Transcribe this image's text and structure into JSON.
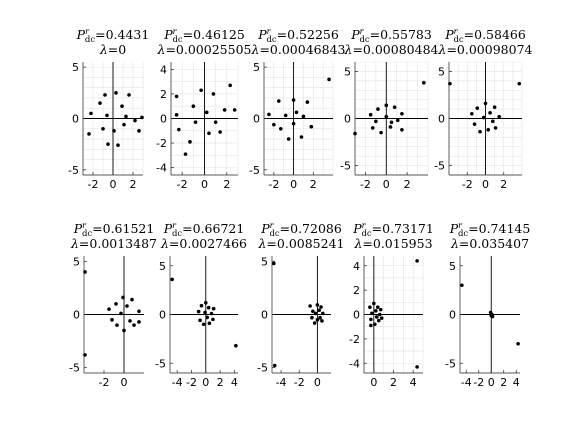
{
  "figure": {
    "background": "#ffffff",
    "point_color": "#000000",
    "grid_color": "#e3e3e3"
  },
  "chart_data": [
    {
      "type": "scatter",
      "title_main": "P",
      "title_sub": "dc",
      "title_sup": "r",
      "p_value": "=0.4431",
      "lambda_value": "=0",
      "xlim": [
        -3,
        3
      ],
      "ylim": [
        -5.5,
        5.5
      ],
      "xticks": [
        -2,
        0,
        2
      ],
      "yticks": [
        -5,
        0,
        5
      ],
      "grid": true,
      "zero_lines": true,
      "points": [
        [
          -2.4,
          -1.5
        ],
        [
          -2.2,
          0.5
        ],
        [
          -1.3,
          1.5
        ],
        [
          -0.8,
          2.3
        ],
        [
          -0.6,
          0.3
        ],
        [
          -1.0,
          -1.0
        ],
        [
          -0.5,
          -2.5
        ],
        [
          0.1,
          -1.2
        ],
        [
          0.3,
          2.5
        ],
        [
          0.5,
          -2.6
        ],
        [
          0.9,
          1.2
        ],
        [
          1.1,
          -0.6
        ],
        [
          1.3,
          0.2
        ],
        [
          1.6,
          2.3
        ],
        [
          2.2,
          -0.2
        ],
        [
          2.6,
          -1.2
        ],
        [
          2.9,
          0.1
        ]
      ]
    },
    {
      "type": "scatter",
      "title_main": "P",
      "title_sub": "dc",
      "title_sup": "r",
      "p_value": "=0.46125",
      "lambda_value": "=0.00025505",
      "xlim": [
        -3,
        3
      ],
      "ylim": [
        -4.6,
        4.6
      ],
      "xticks": [
        -2,
        0,
        2
      ],
      "yticks": [
        -4,
        -2,
        0,
        2,
        4
      ],
      "grid": true,
      "zero_lines": true,
      "points": [
        [
          -2.5,
          1.8
        ],
        [
          -2.5,
          0.3
        ],
        [
          -2.3,
          -0.9
        ],
        [
          -1.7,
          -2.9
        ],
        [
          -1.3,
          -1.9
        ],
        [
          -1.0,
          1.0
        ],
        [
          -0.8,
          -0.3
        ],
        [
          -0.3,
          2.3
        ],
        [
          0.2,
          0.5
        ],
        [
          0.4,
          -1.2
        ],
        [
          0.8,
          2.0
        ],
        [
          1.0,
          -0.3
        ],
        [
          1.4,
          -1.1
        ],
        [
          1.8,
          0.7
        ],
        [
          2.3,
          2.7
        ],
        [
          2.7,
          0.7
        ]
      ]
    },
    {
      "type": "scatter",
      "title_main": "P",
      "title_sub": "dc",
      "title_sup": "r",
      "p_value": "=0.52256",
      "lambda_value": "=0.00046843",
      "xlim": [
        -3,
        4
      ],
      "ylim": [
        -5.5,
        5.5
      ],
      "xticks": [
        -2,
        0,
        2
      ],
      "yticks": [
        -5,
        0,
        5
      ],
      "grid": true,
      "zero_lines": true,
      "points": [
        [
          -2.5,
          0.4
        ],
        [
          -2.0,
          -0.6
        ],
        [
          -1.5,
          1.7
        ],
        [
          -1.3,
          -1.0
        ],
        [
          -0.8,
          0.3
        ],
        [
          -0.5,
          -2.0
        ],
        [
          0.0,
          -0.5
        ],
        [
          0.0,
          1.8
        ],
        [
          0.3,
          0.6
        ],
        [
          0.8,
          -1.8
        ],
        [
          1.0,
          0.2
        ],
        [
          1.4,
          1.6
        ],
        [
          1.8,
          -0.8
        ],
        [
          3.6,
          3.8
        ]
      ]
    },
    {
      "type": "scatter",
      "title_main": "P",
      "title_sub": "dc",
      "title_sup": "r",
      "p_value": "=0.55783",
      "lambda_value": "=0.00080484",
      "xlim": [
        -3,
        4
      ],
      "ylim": [
        -6,
        6
      ],
      "xticks": [
        -2,
        0,
        2
      ],
      "yticks": [
        -5,
        0,
        5
      ],
      "grid": true,
      "zero_lines": true,
      "points": [
        [
          -3.0,
          -1.6
        ],
        [
          -1.5,
          0.4
        ],
        [
          -1.3,
          -1.0
        ],
        [
          -1.0,
          -0.3
        ],
        [
          -0.8,
          1.0
        ],
        [
          -0.5,
          -1.5
        ],
        [
          0.0,
          0.2
        ],
        [
          0.0,
          1.4
        ],
        [
          0.4,
          -0.9
        ],
        [
          0.5,
          -0.4
        ],
        [
          0.8,
          1.2
        ],
        [
          1.1,
          -0.2
        ],
        [
          1.5,
          0.5
        ],
        [
          1.5,
          -1.2
        ],
        [
          3.6,
          3.8
        ]
      ]
    },
    {
      "type": "scatter",
      "title_main": "P",
      "title_sub": "dc",
      "title_sup": "r",
      "p_value": "=0.58466",
      "lambda_value": "=0.00098074",
      "xlim": [
        -4,
        4
      ],
      "ylim": [
        -6,
        6
      ],
      "xticks": [
        -2,
        0,
        2
      ],
      "yticks": [
        -5,
        0,
        5
      ],
      "grid": true,
      "zero_lines": true,
      "points": [
        [
          -3.9,
          3.7
        ],
        [
          -1.5,
          0.5
        ],
        [
          -1.2,
          -0.6
        ],
        [
          -0.9,
          1.1
        ],
        [
          -0.6,
          -1.4
        ],
        [
          -0.2,
          0.1
        ],
        [
          0.0,
          1.6
        ],
        [
          0.3,
          -1.2
        ],
        [
          0.5,
          0.6
        ],
        [
          0.8,
          -0.3
        ],
        [
          1.0,
          1.2
        ],
        [
          1.1,
          -1.0
        ],
        [
          1.5,
          0.2
        ],
        [
          3.7,
          3.7
        ]
      ]
    },
    {
      "type": "scatter",
      "title_main": "P",
      "title_sub": "dc",
      "title_sup": "r",
      "p_value": "=0.61521",
      "lambda_value": "=0.0013487",
      "xlim": [
        -4,
        2
      ],
      "ylim": [
        -5.5,
        5.5
      ],
      "xticks": [
        -2,
        0
      ],
      "yticks": [
        -5,
        0,
        5
      ],
      "grid": false,
      "zero_lines": true,
      "points": [
        [
          -3.9,
          4.0
        ],
        [
          -3.9,
          -3.8
        ],
        [
          -1.5,
          0.5
        ],
        [
          -1.2,
          -0.5
        ],
        [
          -0.8,
          1.0
        ],
        [
          -0.7,
          -1.0
        ],
        [
          -0.3,
          0.1
        ],
        [
          -0.1,
          1.6
        ],
        [
          0.0,
          -1.5
        ],
        [
          0.3,
          0.8
        ],
        [
          0.6,
          -0.6
        ],
        [
          0.8,
          1.4
        ],
        [
          1.0,
          -1.0
        ],
        [
          1.5,
          0.3
        ],
        [
          1.5,
          -0.7
        ]
      ]
    },
    {
      "type": "scatter",
      "title_main": "P",
      "title_sub": "dc",
      "title_sup": "r",
      "p_value": "=0.66721",
      "lambda_value": "=0.0027466",
      "xlim": [
        -5,
        4.5
      ],
      "ylim": [
        -6,
        6
      ],
      "xticks": [
        -4,
        -2,
        0,
        2,
        4
      ],
      "yticks": [
        -5,
        0,
        5
      ],
      "grid": false,
      "zero_lines": true,
      "points": [
        [
          -4.7,
          3.6
        ],
        [
          4.2,
          -3.2
        ],
        [
          -1.0,
          0.3
        ],
        [
          -0.8,
          -0.6
        ],
        [
          -0.6,
          0.9
        ],
        [
          -0.3,
          -1.0
        ],
        [
          -0.1,
          0.2
        ],
        [
          0.0,
          1.2
        ],
        [
          0.2,
          -0.3
        ],
        [
          0.4,
          0.7
        ],
        [
          0.5,
          -0.9
        ],
        [
          0.8,
          0.1
        ],
        [
          1.0,
          -0.5
        ],
        [
          1.1,
          0.6
        ]
      ]
    },
    {
      "type": "scatter",
      "title_main": "P",
      "title_sub": "dc",
      "title_sup": "r",
      "p_value": "=0.72086",
      "lambda_value": "=0.0085241",
      "xlim": [
        -5,
        1.5
      ],
      "ylim": [
        -5.5,
        5.5
      ],
      "xticks": [
        -4,
        -2,
        0
      ],
      "yticks": [
        -5,
        0,
        5
      ],
      "grid": false,
      "zero_lines": true,
      "points": [
        [
          -4.8,
          4.8
        ],
        [
          -4.7,
          -4.8
        ],
        [
          -0.8,
          0.8
        ],
        [
          -0.6,
          -0.3
        ],
        [
          -0.5,
          0.3
        ],
        [
          -0.3,
          -0.8
        ],
        [
          -0.2,
          0.1
        ],
        [
          0.0,
          0.9
        ],
        [
          0.0,
          -0.5
        ],
        [
          0.2,
          0.4
        ],
        [
          0.3,
          -0.3
        ],
        [
          0.4,
          0.7
        ],
        [
          0.5,
          -0.6
        ],
        [
          0.6,
          0.1
        ]
      ]
    },
    {
      "type": "scatter",
      "title_main": "P",
      "title_sub": "dc",
      "title_sup": "r",
      "p_value": "=0.73171",
      "lambda_value": "=0.015953",
      "xlim": [
        -1,
        5
      ],
      "ylim": [
        -4.8,
        4.8
      ],
      "xticks": [
        0,
        2,
        4
      ],
      "yticks": [
        -4,
        -2,
        0,
        2,
        4
      ],
      "grid": true,
      "zero_lines": true,
      "points": [
        [
          4.4,
          4.4
        ],
        [
          4.4,
          -4.3
        ],
        [
          -0.4,
          0.6
        ],
        [
          -0.3,
          -0.4
        ],
        [
          -0.2,
          0.1
        ],
        [
          0.0,
          0.9
        ],
        [
          0.1,
          -0.8
        ],
        [
          0.2,
          0.3
        ],
        [
          0.3,
          -0.2
        ],
        [
          0.4,
          0.6
        ],
        [
          0.5,
          -0.5
        ],
        [
          0.6,
          0.0
        ],
        [
          0.7,
          0.4
        ],
        [
          -0.3,
          -0.9
        ],
        [
          0.8,
          -0.3
        ]
      ]
    },
    {
      "type": "scatter",
      "title_main": "P",
      "title_sub": "dc",
      "title_sup": "r",
      "p_value": "=0.74145",
      "lambda_value": "=0.035407",
      "xlim": [
        -5,
        4.6
      ],
      "ylim": [
        -6,
        6
      ],
      "xticks": [
        -4,
        -2,
        0,
        2,
        4
      ],
      "yticks": [
        -5,
        0,
        5
      ],
      "grid": false,
      "zero_lines": true,
      "points": [
        [
          -4.7,
          3.0
        ],
        [
          4.3,
          -3.0
        ],
        [
          -0.1,
          0.2
        ],
        [
          0.0,
          -0.1
        ],
        [
          0.1,
          0.0
        ],
        [
          0.2,
          -0.2
        ]
      ]
    }
  ]
}
